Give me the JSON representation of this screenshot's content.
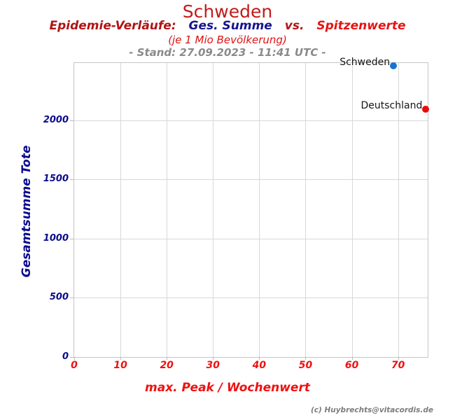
{
  "header": {
    "title": "Schweden",
    "sub1": "Epidemie-Verläufe:",
    "sub2": "Ges. Summe",
    "sub3": "vs.",
    "sub4": "Spitzenwerte",
    "mio": "(je 1 Mio Bevölkerung)",
    "stand": "- Stand: 27.09.2023 - 11:41 UTC -"
  },
  "footer": {
    "credit": "(c) Huybrechts@vitacordis.de"
  },
  "colors": {
    "title_red": "#c41a1a",
    "dark_red": "#b11414",
    "navy": "#15158f",
    "bright_red": "#e61414",
    "stand_gray": "#8a8a8a",
    "grid_gray": "#d8d8d8",
    "x_tick_red": "#ee1111",
    "y_tick_navy": "#0b0b8f",
    "schweden_point_blue": "#1674d1",
    "deutschland_point_red": "#ee0a0a"
  },
  "chart_data": {
    "type": "scatter",
    "title": "Schweden",
    "subtitle": "Epidemie-Verläufe: Ges. Summe vs. Spitzenwerte (je 1 Mio Bevölkerung)",
    "stand": "- Stand: 27.09.2023 - 11:41 UTC -",
    "xlabel": "max. Peak / Wochenwert",
    "ylabel": "Gesamtsumme Tote",
    "xlim": [
      0,
      76.4
    ],
    "ylim": [
      0,
      2485
    ],
    "x_ticks": [
      0,
      10,
      20,
      30,
      40,
      50,
      60,
      70
    ],
    "y_ticks": [
      0,
      500,
      1000,
      1500,
      2000
    ],
    "grid": true,
    "legend": "none",
    "points": [
      {
        "label": "Schweden",
        "x": 69,
        "y": 2460,
        "color": "#1674d1"
      },
      {
        "label": "Deutschland",
        "x": 76,
        "y": 2095,
        "color": "#ee0a0a"
      }
    ]
  }
}
